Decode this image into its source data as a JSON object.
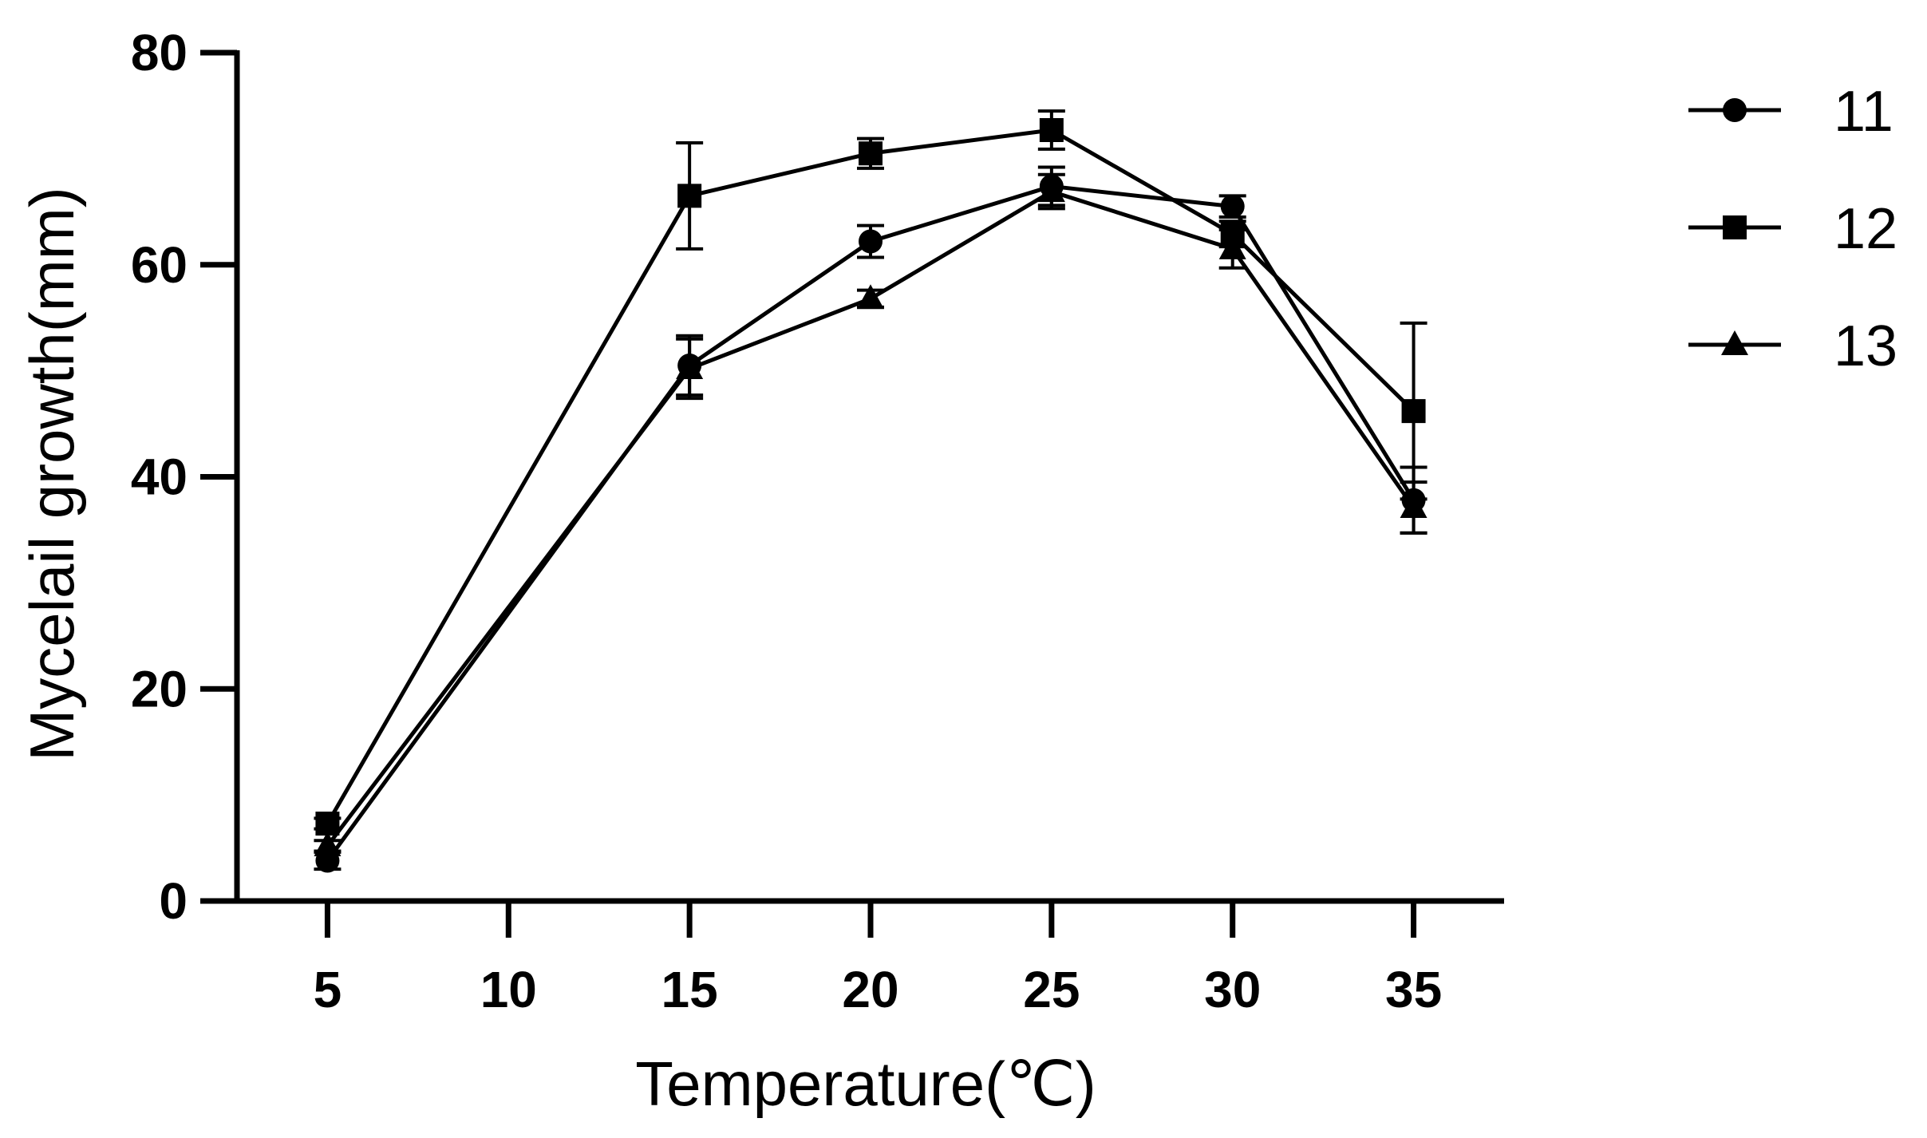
{
  "chart_data": {
    "type": "line",
    "xlabel": "Temperature(℃)",
    "ylabel": "Mycelail growth(mm)",
    "x_ticks": [
      "5",
      "10",
      "15",
      "20",
      "25",
      "30",
      "35"
    ],
    "y_ticks": [
      "0",
      "20",
      "40",
      "60",
      "80"
    ],
    "xlim": [
      2.5,
      37.5
    ],
    "ylim": [
      0,
      80
    ],
    "x": [
      5,
      15,
      20,
      25,
      30,
      35
    ],
    "series": [
      {
        "name": "11",
        "marker": "circle",
        "values": [
          3.8,
          50.5,
          62.2,
          67.4,
          65.5,
          37.8
        ],
        "errors": [
          0.8,
          2.8,
          1.5,
          1.8,
          1.0,
          3.1
        ]
      },
      {
        "name": "12",
        "marker": "square",
        "values": [
          7.3,
          66.5,
          70.5,
          72.7,
          62.9,
          46.2
        ],
        "errors": [
          0.5,
          5.0,
          1.4,
          1.8,
          1.2,
          8.3
        ]
      },
      {
        "name": "13",
        "marker": "triangle",
        "values": [
          5.2,
          50.2,
          56.8,
          66.9,
          61.5,
          37.1
        ],
        "errors": [
          0.5,
          2.8,
          0.8,
          1.6,
          1.8,
          2.4
        ]
      }
    ],
    "legend": {
      "position": "top-right"
    },
    "grid": false,
    "colors": {
      "line": "#000000",
      "background": "#ffffff"
    }
  }
}
